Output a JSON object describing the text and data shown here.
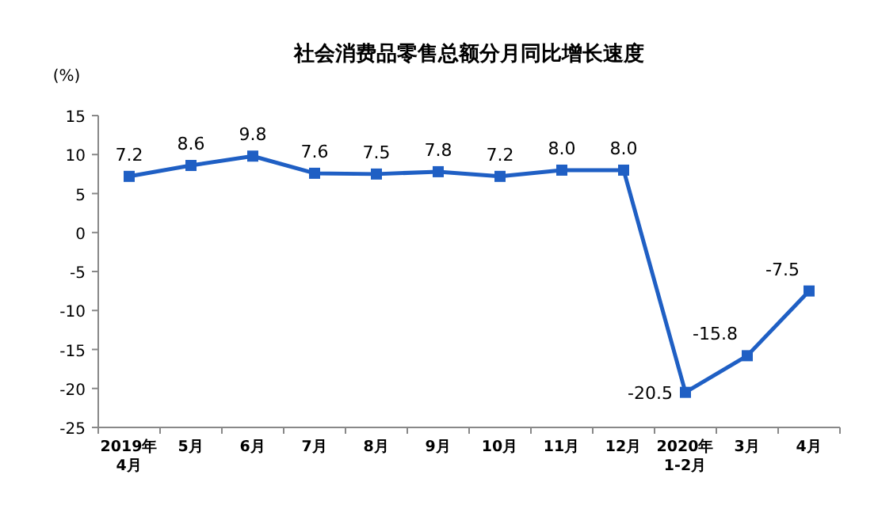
{
  "chart_data": {
    "type": "line",
    "title": "社会消费品零售总额分月同比增长速度",
    "ylabel": "(%)",
    "categories": [
      "2019年\n4月",
      "5月",
      "6月",
      "7月",
      "8月",
      "9月",
      "10月",
      "11月",
      "12月",
      "2020年\n1-2月",
      "3月",
      "4月"
    ],
    "series": [
      {
        "color": "#1f5fc4",
        "values": [
          7.2,
          8.6,
          9.8,
          7.6,
          7.5,
          7.8,
          7.2,
          8.0,
          8.0,
          -20.5,
          -15.8,
          -7.5
        ]
      }
    ],
    "value_labels": [
      "7.2",
      "8.6",
      "9.8",
      "7.6",
      "7.5",
      "7.8",
      "7.2",
      "8.0",
      "8.0",
      "-20.5",
      "-15.8",
      "-7.5"
    ],
    "ylim": [
      -25,
      15
    ],
    "yticks": [
      -25,
      -20,
      -15,
      -10,
      -5,
      0,
      5,
      10,
      15
    ],
    "marker": "square",
    "grid": false
  }
}
